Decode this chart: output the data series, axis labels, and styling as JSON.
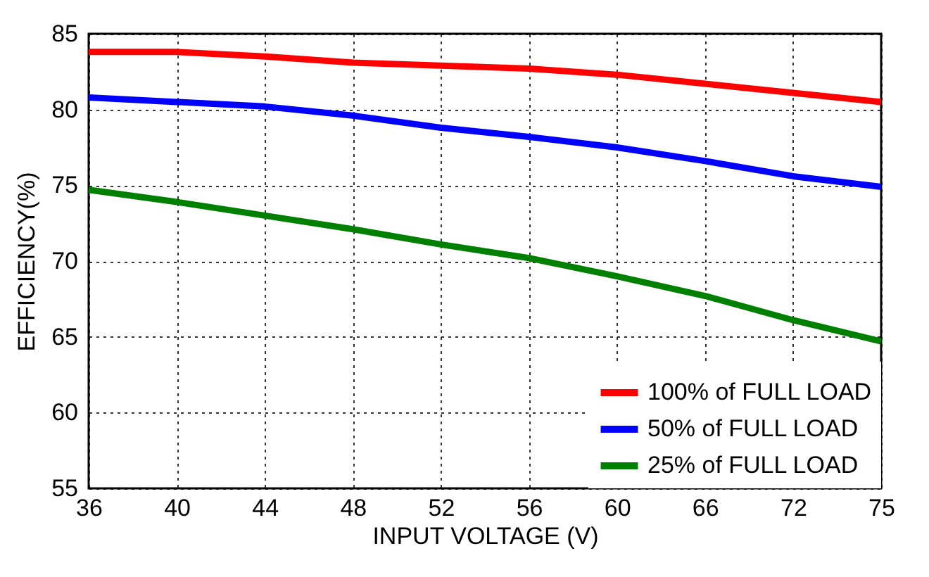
{
  "chart_data": {
    "type": "line",
    "xlabel": "INPUT VOLTAGE (V)",
    "ylabel": "EFFICIENCY(%)",
    "categories": [
      "36",
      "40",
      "44",
      "48",
      "52",
      "56",
      "60",
      "66",
      "72",
      "75"
    ],
    "series": [
      {
        "name": "100% of FULL LOAD",
        "color": "#ff0000",
        "values": [
          83.8,
          83.8,
          83.5,
          83.1,
          82.9,
          82.7,
          82.3,
          81.7,
          81.1,
          80.5
        ]
      },
      {
        "name": "50% of FULL LOAD",
        "color": "#0000ff",
        "values": [
          80.8,
          80.5,
          80.2,
          79.6,
          78.8,
          78.2,
          77.5,
          76.6,
          75.6,
          74.9
        ]
      },
      {
        "name": "25% of FULL LOAD",
        "color": "#008000",
        "values": [
          74.7,
          73.9,
          73.0,
          72.1,
          71.1,
          70.2,
          69.0,
          67.7,
          66.1,
          64.7
        ]
      }
    ],
    "ylim": [
      55,
      85
    ],
    "yticks": [
      55,
      60,
      65,
      70,
      75,
      80,
      85
    ],
    "grid": true,
    "legend": "bottom right",
    "marker": "none",
    "line_style": "solid"
  }
}
